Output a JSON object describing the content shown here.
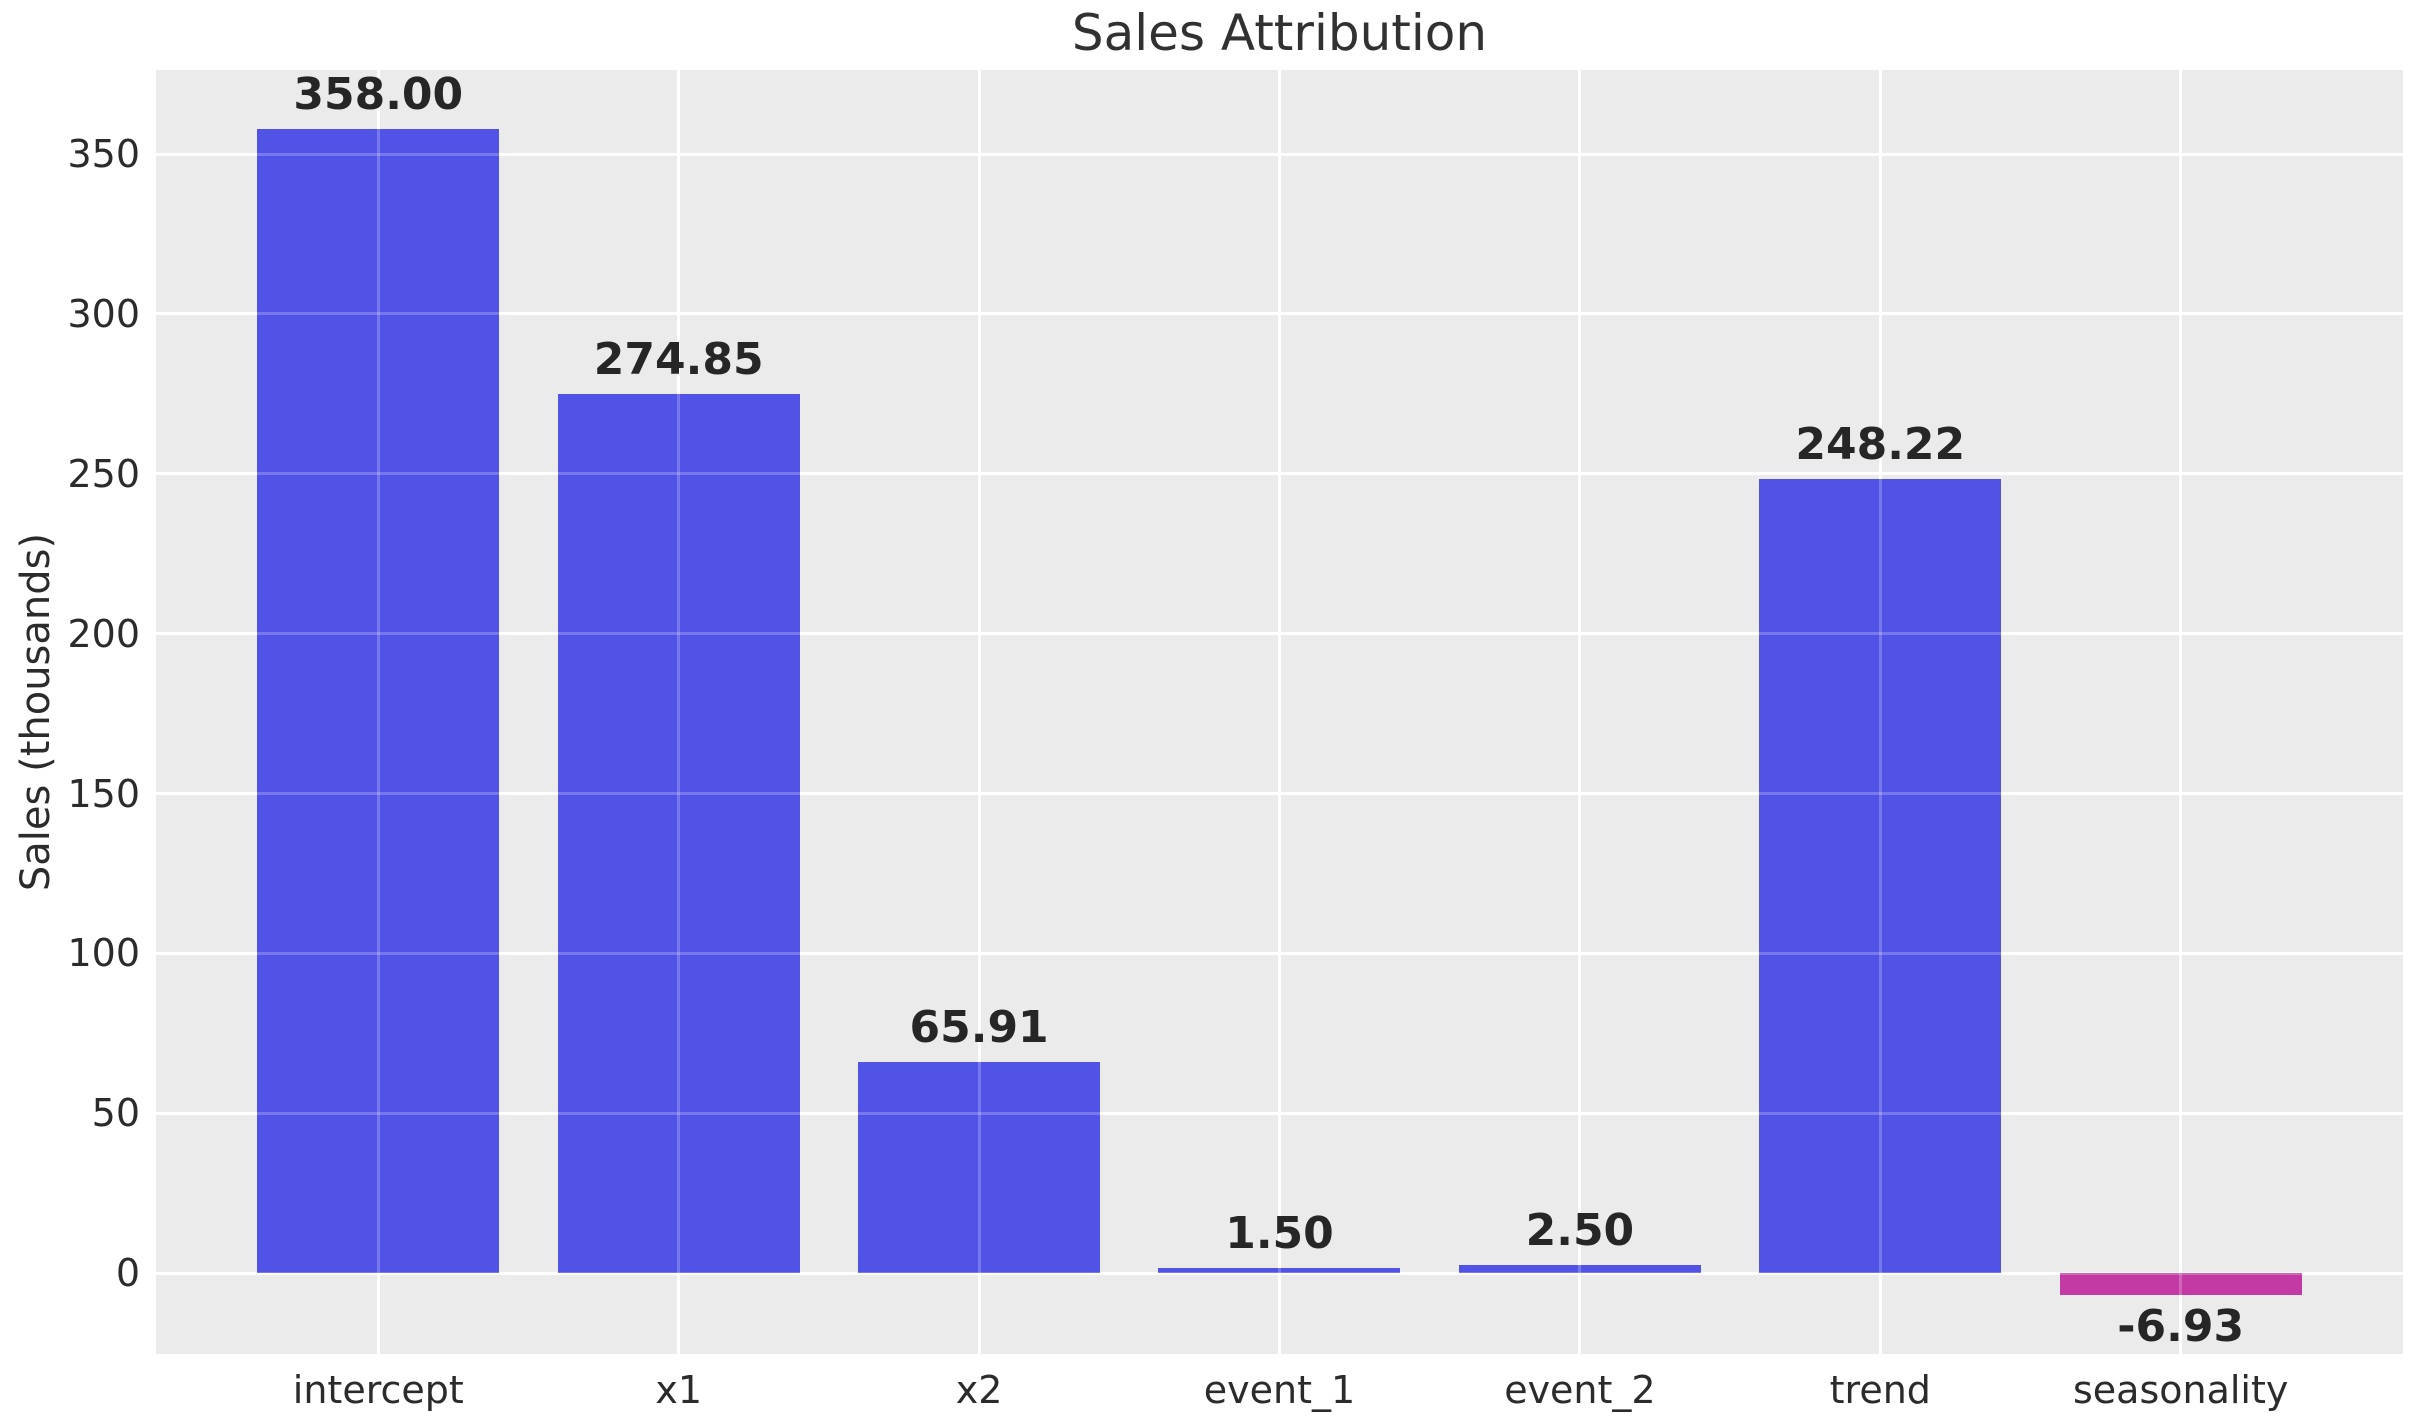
{
  "figure": {
    "background_color": "#ffffff"
  },
  "chart_data": {
    "type": "bar",
    "title": "Sales Attribution",
    "ylabel": "Sales (thousands)",
    "xlabel": "",
    "categories": [
      "intercept",
      "x1",
      "x2",
      "event_1",
      "event_2",
      "trend",
      "seasonality"
    ],
    "values": [
      358.0,
      274.85,
      65.91,
      1.5,
      2.5,
      248.22,
      -6.93
    ],
    "value_labels": [
      "358.00",
      "274.85",
      "65.91",
      "1.50",
      "2.50",
      "248.22",
      "-6.93"
    ],
    "yticks": [
      0,
      50,
      100,
      150,
      200,
      250,
      300,
      350
    ],
    "ytick_labels": [
      "0",
      "50",
      "100",
      "150",
      "200",
      "250",
      "300",
      "350"
    ],
    "ylim": [
      -25.3,
      376.3
    ],
    "grid": true,
    "legend": false,
    "colors": {
      "bar_positive": "#5153e7",
      "bar_negative": "#c43aa4",
      "plot_background": "#ebebeb",
      "grid_line": "#ffffff",
      "tick_text": "#2b2b2b",
      "value_text": "#262626",
      "title_text": "#313131"
    }
  }
}
